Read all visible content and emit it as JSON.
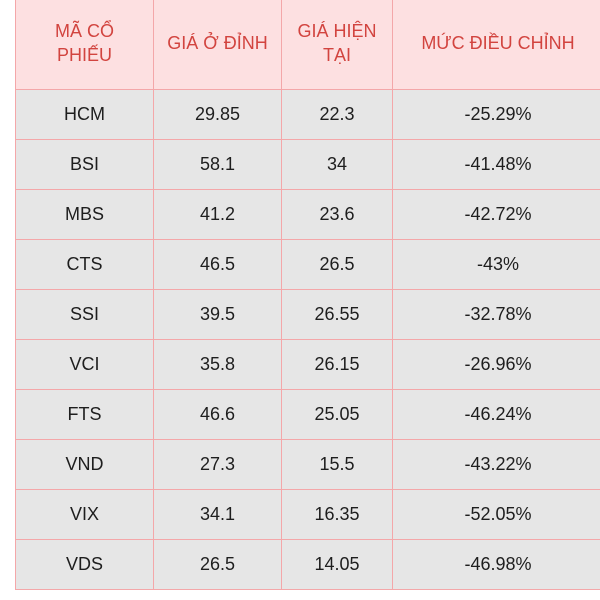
{
  "table": {
    "headers": [
      "MÃ CỔ PHIẾU",
      "GIÁ Ở ĐỈNH",
      "GIÁ HIỆN TẠI",
      "MỨC ĐIỀU CHỈNH"
    ],
    "rows": [
      [
        "HCM",
        "29.85",
        "22.3",
        "-25.29%"
      ],
      [
        "BSI",
        "58.1",
        "34",
        "-41.48%"
      ],
      [
        "MBS",
        "41.2",
        "23.6",
        "-42.72%"
      ],
      [
        "CTS",
        "46.5",
        "26.5",
        "-43%"
      ],
      [
        "SSI",
        "39.5",
        "26.55",
        "-32.78%"
      ],
      [
        "VCI",
        "35.8",
        "26.15",
        "-26.96%"
      ],
      [
        "FTS",
        "46.6",
        "25.05",
        "-46.24%"
      ],
      [
        "VND",
        "27.3",
        "15.5",
        "-43.22%"
      ],
      [
        "VIX",
        "34.1",
        "16.35",
        "-52.05%"
      ],
      [
        "VDS",
        "26.5",
        "14.05",
        "-46.98%"
      ]
    ]
  },
  "colors": {
    "header_background": "#fde0e1",
    "header_text": "#d2443f",
    "cell_background": "#e6e6e6",
    "border": "#f4a7a9"
  }
}
